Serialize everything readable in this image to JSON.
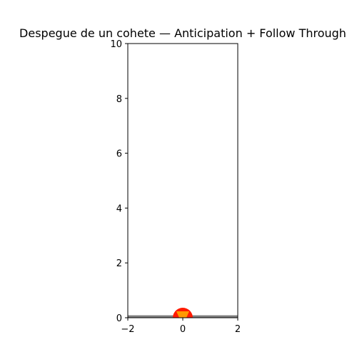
{
  "chart_data": {
    "type": "scatter",
    "title": "Despegue de un cohete — Anticipation + Follow Through",
    "xlabel": "",
    "ylabel": "",
    "xlim": [
      -2,
      2
    ],
    "ylim": [
      0,
      10
    ],
    "xticks": [
      -2,
      0,
      2
    ],
    "yticks": [
      0,
      2,
      4,
      6,
      8,
      10
    ],
    "x_tick_labels": [
      "−2",
      "0",
      "2"
    ],
    "y_tick_labels": [
      "0",
      "2",
      "4",
      "6",
      "8",
      "10"
    ],
    "grid": false,
    "legend": "none",
    "ground": {
      "y": 0.05,
      "color": "#7f7f7f"
    },
    "rocket": {
      "x": 0,
      "y": 0,
      "flame_color": "#ff1a00",
      "body_color": "#ff9900"
    }
  }
}
